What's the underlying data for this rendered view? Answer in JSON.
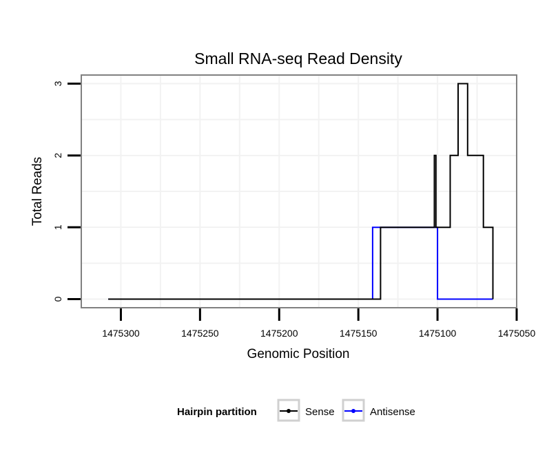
{
  "chart_data": {
    "type": "line",
    "title": "Small RNA-seq Read Density",
    "xlabel": "Genomic Position",
    "ylabel": "Total Reads",
    "x_reversed": true,
    "xlim": [
      1475325,
      1475050
    ],
    "ylim": [
      -0.12,
      3.12
    ],
    "x_ticks": [
      1475300,
      1475250,
      1475200,
      1475150,
      1475100,
      1475050
    ],
    "x_tick_labels": [
      "1475300",
      "1475250",
      "1475200",
      "1475150",
      "1475100",
      "1475050"
    ],
    "y_ticks": [
      0,
      1,
      2,
      3
    ],
    "y_tick_labels": [
      "0",
      "1",
      "2",
      "3"
    ],
    "grid": true,
    "legend": {
      "title": "Hairpin partition",
      "position": "bottom"
    },
    "series": [
      {
        "name": "Sense",
        "color": "#000000",
        "step_points": [
          [
            1475308,
            0
          ],
          [
            1475136,
            0
          ],
          [
            1475136,
            1
          ],
          [
            1475102,
            1
          ],
          [
            1475102,
            2
          ],
          [
            1475101,
            2
          ],
          [
            1475101,
            1
          ],
          [
            1475092,
            1
          ],
          [
            1475092,
            2
          ],
          [
            1475087,
            2
          ],
          [
            1475087,
            3
          ],
          [
            1475081,
            3
          ],
          [
            1475081,
            2
          ],
          [
            1475071,
            2
          ],
          [
            1475071,
            1
          ],
          [
            1475065,
            1
          ],
          [
            1475065,
            0
          ],
          [
            1475065,
            0
          ]
        ]
      },
      {
        "name": "Antisense",
        "color": "#0000ff",
        "step_points": [
          [
            1475308,
            0
          ],
          [
            1475141,
            0
          ],
          [
            1475141,
            1
          ],
          [
            1475100,
            1
          ],
          [
            1475100,
            0
          ],
          [
            1475065,
            0
          ]
        ]
      }
    ]
  }
}
